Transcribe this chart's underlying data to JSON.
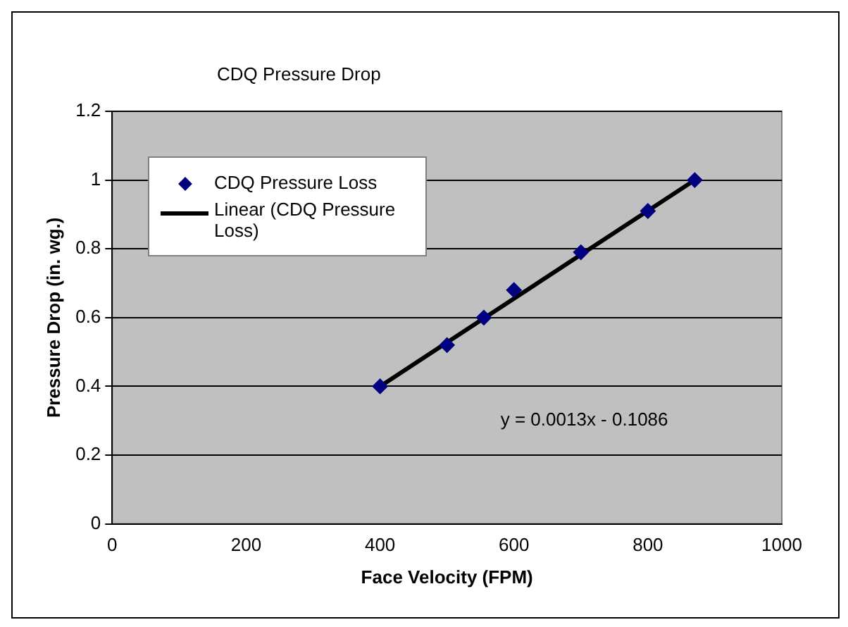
{
  "chart_data": {
    "type": "scatter",
    "title": "CDQ Pressure Drop",
    "xlabel": "Face Velocity (FPM)",
    "ylabel": "Pressure Drop (in. wg.)",
    "xlim": [
      0,
      1000
    ],
    "xticks": [
      0,
      200,
      400,
      600,
      800,
      1000
    ],
    "ylim": [
      0,
      1.2
    ],
    "yticks": [
      0,
      0.2,
      0.4,
      0.6,
      0.8,
      1,
      1.2
    ],
    "grid": "y",
    "legend": "top left",
    "marker": "diamond",
    "annotations": [
      "y = 0.0013x - 0.1086"
    ],
    "series": [
      {
        "name": "CDQ Pressure Loss",
        "color": "#000080",
        "x": [
          400,
          500,
          555,
          600,
          700,
          800,
          870
        ],
        "values": [
          0.4,
          0.52,
          0.6,
          0.68,
          0.79,
          0.91,
          1.0
        ]
      },
      {
        "name": "Linear (CDQ Pressure Loss)",
        "type": "line",
        "color": "#000000",
        "marker": "none",
        "line_style": "solid",
        "x": [
          400,
          870
        ],
        "values": [
          0.4,
          1.0
        ]
      }
    ]
  }
}
